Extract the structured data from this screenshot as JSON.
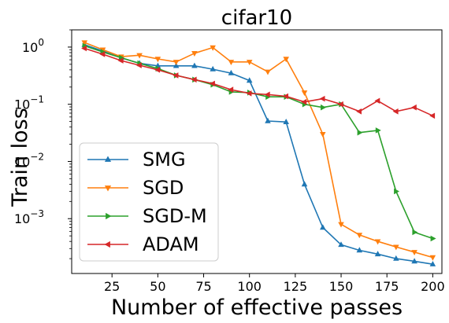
{
  "chart_data": {
    "type": "line",
    "title": "cifar10",
    "xlabel": "Number of effective passes",
    "ylabel": "Train loss",
    "xlim": [
      3,
      205
    ],
    "ylim": [
      0.00011,
      2.0
    ],
    "yscale": "log",
    "x_ticks": [
      25,
      50,
      75,
      100,
      125,
      150,
      175,
      200
    ],
    "y_ticks": [
      {
        "value": 1,
        "base": "10",
        "exp": "0"
      },
      {
        "value": 0.1,
        "base": "10",
        "exp": "−1"
      },
      {
        "value": 0.01,
        "base": "10",
        "exp": "−2"
      },
      {
        "value": 0.001,
        "base": "10",
        "exp": "−3"
      }
    ],
    "grid": false,
    "legend_position": "lower-left",
    "x": [
      10,
      20,
      30,
      40,
      50,
      60,
      70,
      80,
      90,
      100,
      110,
      120,
      130,
      140,
      150,
      160,
      170,
      180,
      190,
      200
    ],
    "series": [
      {
        "name": "SMG",
        "color": "#1f77b4",
        "marker": "triangle-up",
        "values": [
          1.1,
          0.85,
          0.65,
          0.52,
          0.47,
          0.47,
          0.47,
          0.41,
          0.35,
          0.26,
          0.051,
          0.049,
          0.004,
          0.0007,
          0.00035,
          0.00028,
          0.00024,
          0.0002,
          0.00018,
          0.00016
        ]
      },
      {
        "name": "SGD",
        "color": "#ff7f0e",
        "marker": "triangle-down",
        "values": [
          1.2,
          0.9,
          0.68,
          0.72,
          0.62,
          0.55,
          0.78,
          0.98,
          0.55,
          0.55,
          0.37,
          0.62,
          0.16,
          0.03,
          0.0008,
          0.00052,
          0.0004,
          0.00032,
          0.00026,
          0.00021
        ]
      },
      {
        "name": "SGD-M",
        "color": "#2ca02c",
        "marker": "triangle-right",
        "values": [
          1.05,
          0.82,
          0.65,
          0.52,
          0.42,
          0.32,
          0.27,
          0.22,
          0.165,
          0.16,
          0.135,
          0.135,
          0.1,
          0.088,
          0.1,
          0.032,
          0.035,
          0.003,
          0.00058,
          0.00045
        ]
      },
      {
        "name": "ADAM",
        "color": "#d62728",
        "marker": "triangle-left",
        "values": [
          0.95,
          0.75,
          0.58,
          0.48,
          0.4,
          0.32,
          0.27,
          0.23,
          0.18,
          0.155,
          0.148,
          0.138,
          0.11,
          0.125,
          0.1,
          0.075,
          0.115,
          0.075,
          0.088,
          0.063
        ]
      }
    ]
  }
}
